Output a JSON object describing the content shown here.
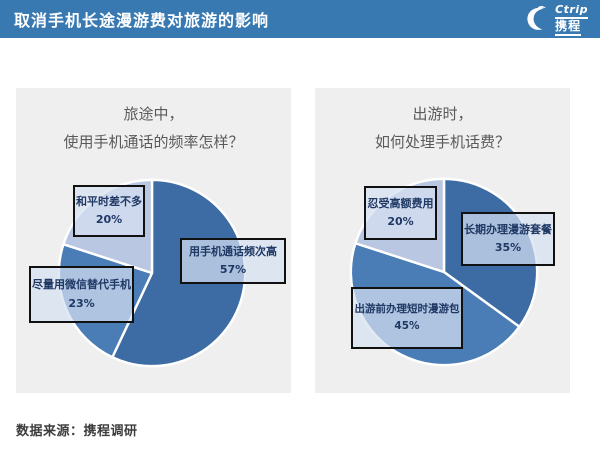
{
  "header": {
    "title": "取消手机长途漫游费对旅游的影响",
    "bg_color": "#3879B2",
    "logo": {
      "brand_en": "Ctrip",
      "brand_zh": "携程",
      "icon": "dolphin-icon",
      "color": "#FFFFFF"
    }
  },
  "palette": {
    "panel_bg": "#EFEFEF",
    "slice_dark": "#3D6CA5",
    "slice_medium": "#4A7CB5",
    "slice_light": "#B9C7E2",
    "callout_fill": "rgba(213,224,241,0.72)",
    "callout_border": "#111111",
    "callout_text": "#1F3864",
    "title_gray": "#5A5A5A"
  },
  "chart_data": [
    {
      "type": "pie",
      "title": "旅途中，使用手机通话的频率怎样？",
      "title_lines": [
        "旅途中，",
        "使用手机通话的频率怎样？"
      ],
      "start_angle_deg": 0,
      "direction": "clockwise-from-top",
      "legend_position": "callout-boxes-over-pie",
      "slices": [
        {
          "label": "用手机通话频次高",
          "value": 57,
          "pct_label": "57%",
          "color": "#3D6CA5"
        },
        {
          "label": "尽量用微信替代手机",
          "value": 23,
          "pct_label": "23%",
          "color": "#4A7CB5"
        },
        {
          "label": "和平时差不多",
          "value": 20,
          "pct_label": "20%",
          "color": "#B9C7E2"
        }
      ]
    },
    {
      "type": "pie",
      "title": "出游时，如何处理手机话费？",
      "title_lines": [
        "出游时，",
        "如何处理手机话费？"
      ],
      "start_angle_deg": 0,
      "direction": "clockwise-from-top",
      "legend_position": "callout-boxes-over-pie",
      "slices": [
        {
          "label": "长期办理漫游套餐",
          "value": 35,
          "pct_label": "35%",
          "color": "#3D6CA5"
        },
        {
          "label": "出游前办理短时漫游包",
          "value": 45,
          "pct_label": "45%",
          "color": "#4A7CB5"
        },
        {
          "label": "忍受高额费用",
          "value": 20,
          "pct_label": "20%",
          "color": "#B9C7E2"
        }
      ]
    }
  ],
  "footer": {
    "source": "数据来源：携程调研"
  }
}
